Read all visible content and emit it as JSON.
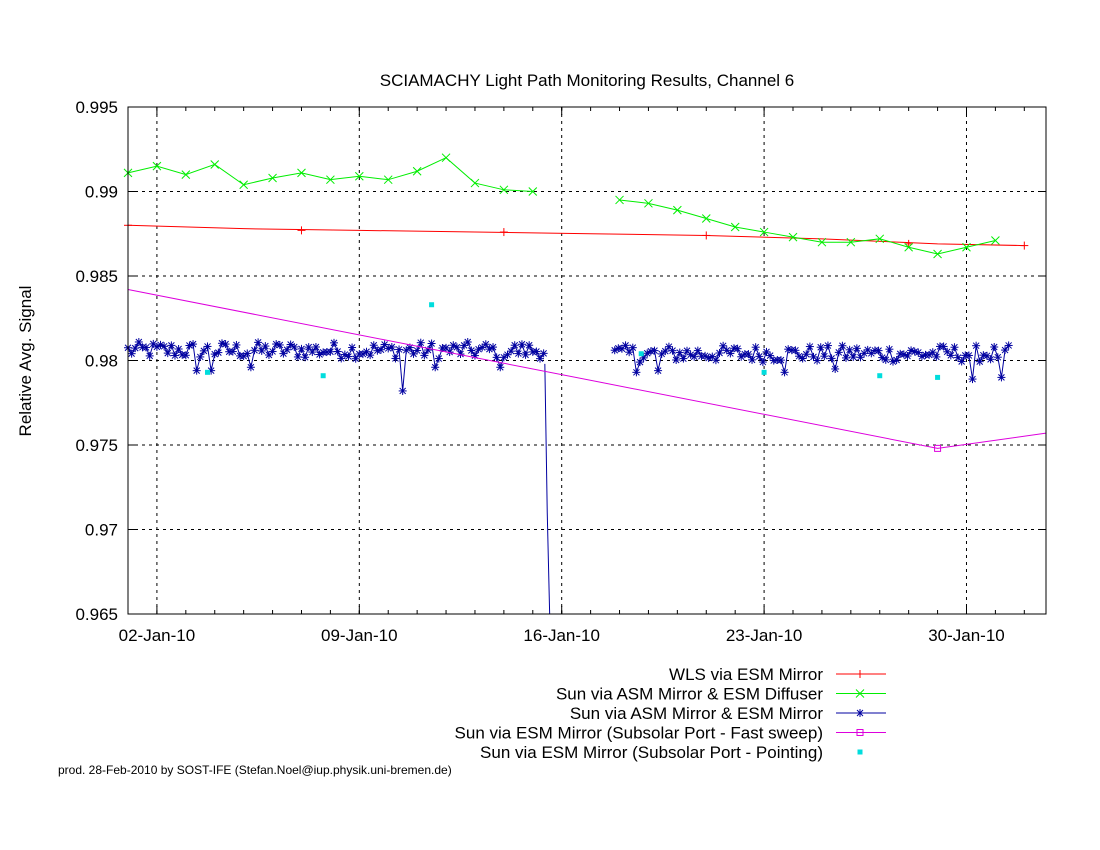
{
  "chart_data": {
    "type": "line",
    "title": "SCIAMACHY Light Path Monitoring Results, Channel 6",
    "ylabel": "Relative Avg. Signal",
    "xlabel": "",
    "ylim": [
      0.965,
      0.995
    ],
    "xlim": [
      "2010-01-01T00:00",
      "2010-02-01T18:00"
    ],
    "y_ticks": [
      "0.965",
      "0.97",
      "0.975",
      "0.98",
      "0.985",
      "0.99",
      "0.995"
    ],
    "x_ticks": [
      {
        "date": "2010-01-02",
        "label": "02-Jan-10"
      },
      {
        "date": "2010-01-09",
        "label": "09-Jan-10"
      },
      {
        "date": "2010-01-16",
        "label": "16-Jan-10"
      },
      {
        "date": "2010-01-23",
        "label": "23-Jan-10"
      },
      {
        "date": "2010-01-30",
        "label": "30-Jan-10"
      }
    ],
    "grid": true,
    "legend_position": "below",
    "series": [
      {
        "name": "WLS via ESM Mirror",
        "color": "#ff0000",
        "marker": "plus",
        "points": [
          [
            "2010-01-01",
            0.988
          ],
          [
            "2010-01-05",
            0.9878
          ],
          [
            "2010-01-09",
            0.9877
          ],
          [
            "2010-01-13",
            0.9876
          ],
          [
            "2010-01-17",
            0.9875
          ],
          [
            "2010-01-21",
            0.9874
          ],
          [
            "2010-01-25",
            0.9872
          ],
          [
            "2010-01-29",
            0.9869
          ],
          [
            "2010-02-01",
            0.9868
          ]
        ],
        "marker_points": [
          [
            "2010-01-01",
            0.988
          ],
          [
            "2010-01-07",
            0.9877
          ],
          [
            "2010-01-14",
            0.9876
          ],
          [
            "2010-01-21",
            0.9874
          ],
          [
            "2010-01-28",
            0.9869
          ],
          [
            "2010-02-01",
            0.9868
          ]
        ]
      },
      {
        "name": "Sun via ASM Mirror & ESM Diffuser",
        "color": "#00ee00",
        "marker": "cross",
        "segments": [
          [
            [
              "2010-01-01",
              0.9911
            ],
            [
              "2010-01-02",
              0.9915
            ],
            [
              "2010-01-03",
              0.991
            ],
            [
              "2010-01-04",
              0.9916
            ],
            [
              "2010-01-05",
              0.9904
            ],
            [
              "2010-01-06",
              0.9908
            ],
            [
              "2010-01-07",
              0.9911
            ],
            [
              "2010-01-08",
              0.9907
            ],
            [
              "2010-01-09",
              0.9909
            ],
            [
              "2010-01-10",
              0.9907
            ],
            [
              "2010-01-11",
              0.9912
            ],
            [
              "2010-01-12",
              0.992
            ],
            [
              "2010-01-13",
              0.9905
            ],
            [
              "2010-01-14",
              0.9901
            ],
            [
              "2010-01-15",
              0.99
            ]
          ],
          [
            [
              "2010-01-18",
              0.9895
            ],
            [
              "2010-01-19",
              0.9893
            ],
            [
              "2010-01-20",
              0.9889
            ],
            [
              "2010-01-21",
              0.9884
            ],
            [
              "2010-01-22",
              0.9879
            ],
            [
              "2010-01-23",
              0.9876
            ],
            [
              "2010-01-24",
              0.9873
            ],
            [
              "2010-01-25",
              0.987
            ],
            [
              "2010-01-26",
              0.987
            ],
            [
              "2010-01-27",
              0.9872
            ],
            [
              "2010-01-28",
              0.9867
            ],
            [
              "2010-01-29",
              0.9863
            ],
            [
              "2010-01-30",
              0.9867
            ],
            [
              "2010-01-31",
              0.9871
            ]
          ]
        ]
      },
      {
        "name": "Sun via ASM Mirror & ESM Mirror",
        "color": "#0000a0",
        "marker": "star",
        "segments": [
          {
            "start": "2010-01-01T00:00",
            "end": "2010-01-15T10:00",
            "mean": 0.9806,
            "amplitude": 0.0005,
            "dips": [
              [
                "2010-01-03T08:00",
                0.9794
              ],
              [
                "2010-01-03T20:00",
                0.9794
              ],
              [
                "2010-01-05T06:00",
                0.9796
              ],
              [
                "2010-01-10T12:00",
                0.9782
              ],
              [
                "2010-01-11T14:00",
                0.9796
              ],
              [
                "2010-01-13T20:00",
                0.9796
              ]
            ]
          },
          {
            "start": "2010-01-17T20:00",
            "end": "2010-01-31T12:00",
            "mean": 0.9804,
            "amplitude": 0.0005,
            "dips": [
              [
                "2010-01-18T14:00",
                0.9793
              ],
              [
                "2010-01-19T08:00",
                0.9794
              ],
              [
                "2010-01-23T18:00",
                0.9793
              ],
              [
                "2010-01-25T12:00",
                0.9795
              ],
              [
                "2010-01-30T04:00",
                0.9789
              ],
              [
                "2010-01-31T06:00",
                0.979
              ]
            ]
          }
        ],
        "drop": [
          [
            "2010-01-15T10:00",
            0.9798
          ],
          [
            "2010-01-15T12:00",
            0.971
          ],
          [
            "2010-01-15T14:00",
            0.965
          ]
        ]
      },
      {
        "name": "Sun via ESM Mirror (Subsolar Port - Fast sweep)",
        "color": "#dd00dd",
        "marker": "square",
        "points": [
          [
            "2010-01-01",
            0.9842
          ],
          [
            "2010-01-29",
            0.9748
          ],
          [
            "2010-02-01T18:00",
            0.9757
          ]
        ],
        "marker_points": [
          [
            "2010-01-29",
            0.9748
          ]
        ]
      },
      {
        "name": "Sun via ESM Mirror (Subsolar Port - Pointing)",
        "color": "#00dddd",
        "marker": "dot",
        "points": [
          [
            "2010-01-03T18:00",
            0.9793
          ],
          [
            "2010-01-07T18:00",
            0.9791
          ],
          [
            "2010-01-11T12:00",
            0.9833
          ],
          [
            "2010-01-18T18:00",
            0.9804
          ],
          [
            "2010-01-23T00:00",
            0.9793
          ],
          [
            "2010-01-27T00:00",
            0.9791
          ],
          [
            "2010-01-29T00:00",
            0.979
          ]
        ]
      }
    ]
  },
  "footer": "prod. 28-Feb-2010 by SOST-IFE (Stefan.Noel@iup.physik.uni-bremen.de)"
}
